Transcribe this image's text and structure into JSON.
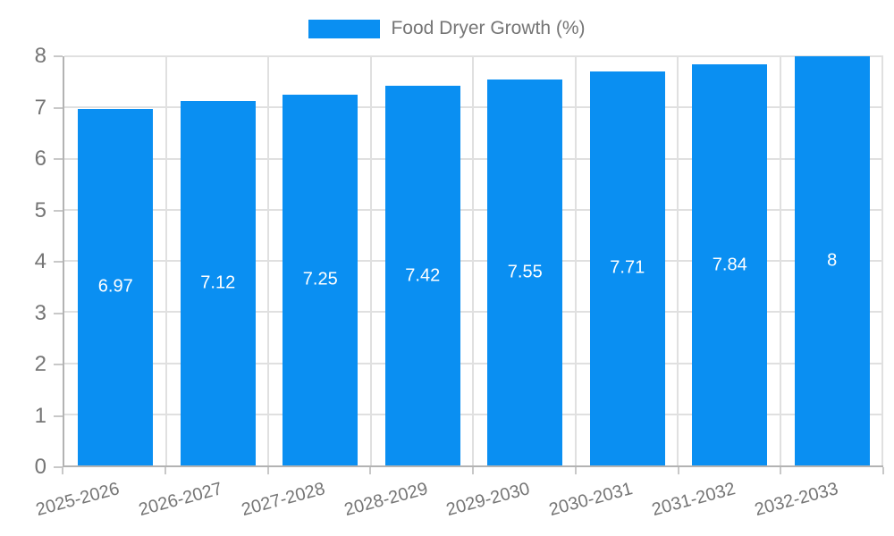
{
  "chart_data": {
    "type": "bar",
    "title": "Food Dryer Growth (%)",
    "categories": [
      "2025-2026",
      "2026-2027",
      "2027-2028",
      "2028-2029",
      "2029-2030",
      "2030-2031",
      "2031-2032",
      "2032-2033"
    ],
    "values": [
      6.97,
      7.12,
      7.25,
      7.42,
      7.55,
      7.71,
      7.84,
      8
    ],
    "value_labels": [
      "6.97",
      "7.12",
      "7.25",
      "7.42",
      "7.55",
      "7.71",
      "7.84",
      "8"
    ],
    "xlabel": "",
    "ylabel": "",
    "ylim": [
      0,
      8
    ],
    "y_ticks": [
      0,
      1,
      2,
      3,
      4,
      5,
      6,
      7,
      8
    ],
    "grid": true,
    "legend_position": "top-center",
    "x_label_rotation_deg": -15,
    "colors": {
      "bar": "#0a8ff2",
      "bar_value_text": "#ffffff",
      "axis_text": "#757575",
      "gridline": "#e0e0e0",
      "axis_line": "#b3b3b3",
      "tick_mark": "#c8c8c8",
      "background": "#ffffff"
    }
  }
}
